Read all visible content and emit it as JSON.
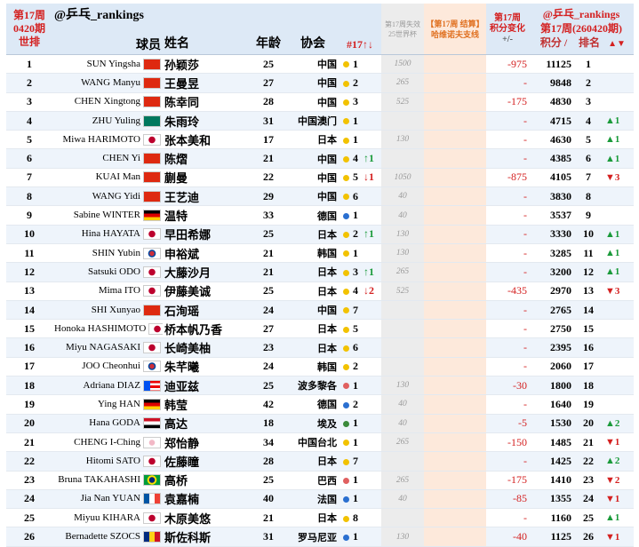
{
  "header": {
    "corner": [
      "第17周",
      "0420期",
      "世排"
    ],
    "handle": "@乒乓_rankings",
    "col_player": "球员",
    "col_name": "姓名",
    "col_age": "年龄",
    "col_assoc": "协会",
    "col_assoc_rank": "#17↑↓",
    "col_expired": [
      "第17周失效",
      "25世界杯"
    ],
    "col_settle": [
      "【第17周 结算】",
      "哈维诺夫支线"
    ],
    "col_change": [
      "第17周",
      "积分变化",
      "+/-"
    ],
    "points_header": [
      "@乒乓_rankings",
      "第17周(260420期)"
    ],
    "col_points": "积分 /",
    "col_pos": "排名",
    "col_move": "▲▼"
  },
  "table": {
    "rows": [
      {
        "rank": "1",
        "player": "SUN Yingsha",
        "name": "孙颖莎",
        "age": "25",
        "assoc": "中国",
        "assoc_rank": "1",
        "expired": "1500",
        "change": "-975",
        "points": "11125",
        "pos": "1"
      },
      {
        "rank": "2",
        "player": "WANG Manyu",
        "name": "王曼昱",
        "age": "27",
        "assoc": "中国",
        "assoc_rank": "2",
        "expired": "265",
        "change": "-",
        "points": "9848",
        "pos": "2"
      },
      {
        "rank": "3",
        "player": "CHEN Xingtong",
        "name": "陈幸同",
        "age": "28",
        "assoc": "中国",
        "assoc_rank": "3",
        "expired": "525",
        "change": "-175",
        "points": "4830",
        "pos": "3"
      },
      {
        "rank": "4",
        "player": "ZHU Yuling",
        "name": "朱雨玲",
        "age": "31",
        "assoc": "中国澳门",
        "assoc_rank": "1",
        "change": "-",
        "points": "4715",
        "pos": "4",
        "move": "▲1",
        "move_color": "#1a9a3a"
      },
      {
        "rank": "5",
        "player": "Miwa HARIMOTO",
        "name": "张本美和",
        "age": "17",
        "assoc": "日本",
        "assoc_rank": "1",
        "expired": "130",
        "change": "-",
        "points": "4630",
        "pos": "5",
        "move": "▲1",
        "move_color": "#1a9a3a"
      },
      {
        "rank": "6",
        "player": "CHEN Yi",
        "name": "陈熠",
        "age": "21",
        "assoc": "中国",
        "assoc_rank": "4",
        "assoc_move": "↑1",
        "assoc_move_color": "#1a9a3a",
        "change": "-",
        "points": "4385",
        "pos": "6",
        "move": "▲1",
        "move_color": "#1a9a3a"
      },
      {
        "rank": "7",
        "player": "KUAI Man",
        "name": "蒯曼",
        "age": "22",
        "assoc": "中国",
        "assoc_rank": "5",
        "assoc_move": "↓1",
        "assoc_move_color": "#d42020",
        "expired": "1050",
        "change": "-875",
        "points": "4105",
        "pos": "7",
        "move": "▼3",
        "move_color": "#d42020"
      },
      {
        "rank": "8",
        "player": "WANG Yidi",
        "name": "王艺迪",
        "age": "29",
        "assoc": "中国",
        "assoc_rank": "6",
        "expired": "40",
        "change": "-",
        "points": "3830",
        "pos": "8"
      },
      {
        "rank": "9",
        "player": "Sabine WINTER",
        "name": "温特",
        "age": "33",
        "assoc": "德国",
        "assoc_rank": "1",
        "expired": "40",
        "change": "-",
        "points": "3537",
        "pos": "9"
      },
      {
        "rank": "10",
        "player": "Hina HAYATA",
        "name": "早田希娜",
        "age": "25",
        "assoc": "日本",
        "assoc_rank": "2",
        "assoc_move": "↑1",
        "assoc_move_color": "#1a9a3a",
        "expired": "130",
        "change": "-",
        "points": "3330",
        "pos": "10",
        "move": "▲1",
        "move_color": "#1a9a3a"
      },
      {
        "rank": "11",
        "player": "SHIN Yubin",
        "name": "申裕斌",
        "age": "21",
        "assoc": "韩国",
        "assoc_rank": "1",
        "expired": "130",
        "change": "-",
        "points": "3285",
        "pos": "11",
        "move": "▲1",
        "move_color": "#1a9a3a"
      },
      {
        "rank": "12",
        "player": "Satsuki ODO",
        "name": "大藤沙月",
        "age": "21",
        "assoc": "日本",
        "assoc_rank": "3",
        "assoc_move": "↑1",
        "assoc_move_color": "#1a9a3a",
        "expired": "265",
        "change": "-",
        "points": "3200",
        "pos": "12",
        "move": "▲1",
        "move_color": "#1a9a3a"
      },
      {
        "rank": "13",
        "player": "Mima ITO",
        "name": "伊藤美诚",
        "age": "25",
        "assoc": "日本",
        "assoc_rank": "4",
        "assoc_move": "↓2",
        "assoc_move_color": "#d42020",
        "expired": "525",
        "change": "-435",
        "points": "2970",
        "pos": "13",
        "move": "▼3",
        "move_color": "#d42020"
      },
      {
        "rank": "14",
        "player": "SHI Xunyao",
        "name": "石洵瑶",
        "age": "24",
        "assoc": "中国",
        "assoc_rank": "7",
        "change": "-",
        "points": "2765",
        "pos": "14"
      },
      {
        "rank": "15",
        "player": "Honoka HASHIMOTO",
        "name": "桥本帆乃香",
        "age": "27",
        "assoc": "日本",
        "assoc_rank": "5",
        "change": "-",
        "points": "2750",
        "pos": "15"
      },
      {
        "rank": "16",
        "player": "Miyu NAGASAKI",
        "name": "长崎美柚",
        "age": "23",
        "assoc": "日本",
        "assoc_rank": "6",
        "change": "-",
        "points": "2395",
        "pos": "16"
      },
      {
        "rank": "17",
        "player": "JOO Cheonhui",
        "name": "朱芊曦",
        "age": "24",
        "assoc": "韩国",
        "assoc_rank": "2",
        "change": "-",
        "points": "2060",
        "pos": "17"
      },
      {
        "rank": "18",
        "player": "Adriana DIAZ",
        "name": "迪亚兹",
        "age": "25",
        "assoc": "波多黎各",
        "assoc_rank": "1",
        "expired": "130",
        "change": "-30",
        "points": "1800",
        "pos": "18"
      },
      {
        "rank": "19",
        "player": "Ying HAN",
        "name": "韩莹",
        "age": "42",
        "assoc": "德国",
        "assoc_rank": "2",
        "expired": "40",
        "change": "-",
        "points": "1640",
        "pos": "19"
      },
      {
        "rank": "20",
        "player": "Hana GODA",
        "name": "高达",
        "age": "18",
        "assoc": "埃及",
        "assoc_rank": "1",
        "expired": "40",
        "change": "-5",
        "points": "1530",
        "pos": "20",
        "move": "▲2",
        "move_color": "#1a9a3a"
      },
      {
        "rank": "21",
        "player": "CHENG I-Ching",
        "name": "郑怡静",
        "age": "34",
        "assoc": "中国台北",
        "assoc_rank": "1",
        "expired": "265",
        "change": "-150",
        "points": "1485",
        "pos": "21",
        "move": "▼1",
        "move_color": "#d42020"
      },
      {
        "rank": "22",
        "player": "Hitomi SATO",
        "name": "佐藤瞳",
        "age": "28",
        "assoc": "日本",
        "assoc_rank": "7",
        "change": "-",
        "points": "1425",
        "pos": "22",
        "move": "▲2",
        "move_color": "#1a9a3a"
      },
      {
        "rank": "23",
        "player": "Bruna TAKAHASHI",
        "name": "高桥",
        "age": "25",
        "assoc": "巴西",
        "assoc_rank": "1",
        "expired": "265",
        "change": "-175",
        "points": "1410",
        "pos": "23",
        "move": "▼2",
        "move_color": "#d42020"
      },
      {
        "rank": "24",
        "player": "Jia Nan YUAN",
        "name": "袁嘉楠",
        "age": "40",
        "assoc": "法国",
        "assoc_rank": "1",
        "expired": "40",
        "change": "-85",
        "points": "1355",
        "pos": "24",
        "move": "▼1",
        "move_color": "#d42020"
      },
      {
        "rank": "25",
        "player": "Miyuu KIHARA",
        "name": "木原美悠",
        "age": "21",
        "assoc": "日本",
        "assoc_rank": "8",
        "change": "-",
        "points": "1160",
        "pos": "25",
        "move": "▲1",
        "move_color": "#1a9a3a"
      },
      {
        "rank": "26",
        "player": "Bernadette SZOCS",
        "name": "斯佐科斯",
        "age": "31",
        "assoc": "罗马尼亚",
        "assoc_rank": "1",
        "expired": "130",
        "change": "-40",
        "points": "1125",
        "pos": "26",
        "move": "▼1",
        "move_color": "#d42020"
      }
    ]
  }
}
